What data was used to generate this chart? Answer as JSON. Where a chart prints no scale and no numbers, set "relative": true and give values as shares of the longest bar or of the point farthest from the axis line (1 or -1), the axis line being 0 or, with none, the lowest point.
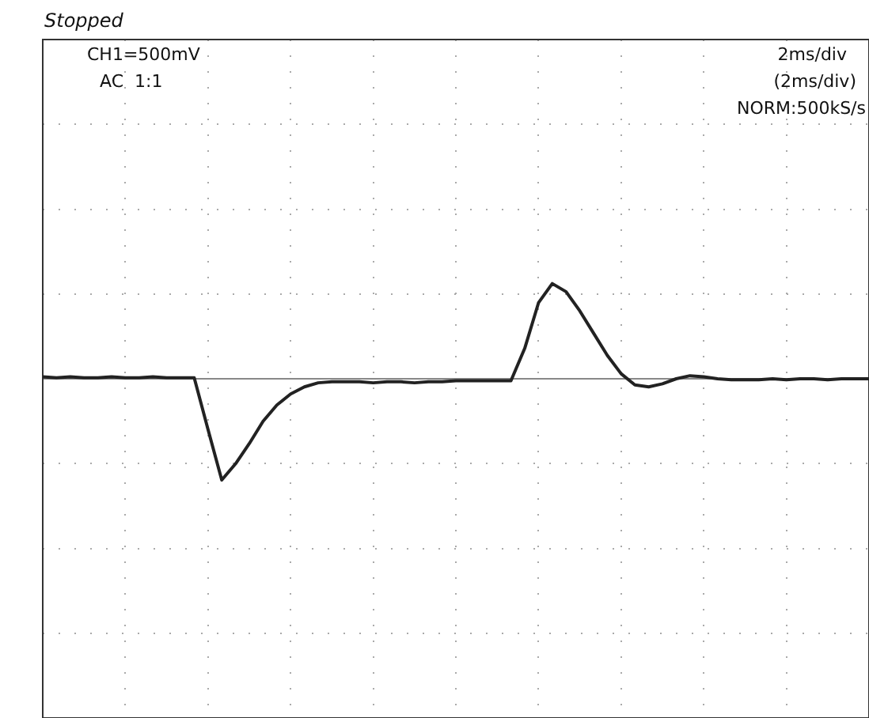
{
  "chart_data": {
    "type": "line",
    "relative": true,
    "grid": true,
    "legend": false,
    "marker": "none",
    "line_style": "solid",
    "categories": [
      null,
      null,
      null,
      null,
      null,
      null,
      null,
      null,
      null,
      null,
      null,
      null,
      null,
      null,
      null,
      null,
      null,
      null,
      null,
      null,
      null,
      null,
      null,
      null,
      null,
      null,
      null,
      null,
      null,
      null,
      null,
      null,
      null,
      null,
      null,
      null,
      null,
      null,
      null,
      null,
      null,
      null,
      null,
      null,
      null,
      null,
      null,
      null,
      null,
      null,
      null,
      null,
      null,
      null,
      null,
      null,
      null,
      null,
      null,
      null,
      null
    ],
    "series": [
      {
        "color": "#222222",
        "values": [
          0.02,
          0.01,
          0.02,
          0.01,
          0.01,
          0.02,
          0.01,
          0.01,
          0.02,
          0.01,
          0.01,
          0.01,
          -0.5,
          -1,
          -0.84,
          -0.64,
          -0.42,
          -0.26,
          -0.15,
          -0.08,
          -0.04,
          -0.03,
          -0.03,
          -0.03,
          -0.04,
          -0.03,
          -0.03,
          -0.04,
          -0.03,
          -0.03,
          -0.02,
          -0.02,
          -0.02,
          -0.02,
          -0.02,
          0.3,
          0.75,
          0.94,
          0.86,
          0.67,
          0.45,
          0.23,
          0.05,
          -0.06,
          -0.08,
          -0.05,
          0,
          0.03,
          0.02,
          0,
          -0.01,
          -0.01,
          -0.01,
          0,
          -0.01,
          0,
          0,
          -0.01,
          0,
          0,
          0
        ]
      }
    ],
    "annotations": [
      "Stopped",
      "CH1=500mV",
      "AC  1:1",
      "2ms/div",
      "(2ms/div)",
      "NORM:500kS/s"
    ]
  }
}
